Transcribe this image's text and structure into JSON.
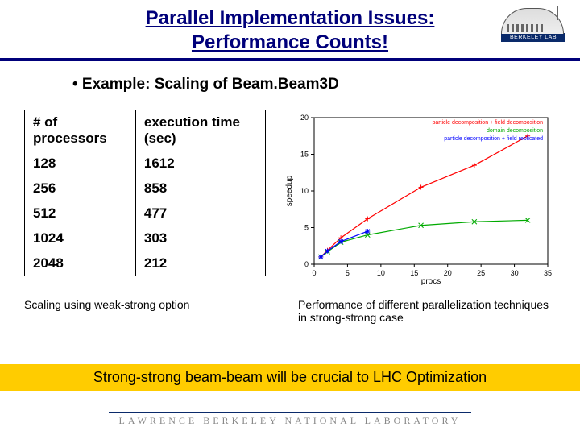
{
  "header": {
    "title_line1": "Parallel Implementation Issues:",
    "title_line2": "Performance Counts!",
    "title_color": "#00007a",
    "logo_label": "BERKELEY LAB"
  },
  "example_bullet": "•   Example: Scaling of Beam.Beam3D",
  "table": {
    "columns": [
      "# of processors",
      "execution time (sec)"
    ],
    "rows": [
      [
        "128",
        "1612"
      ],
      [
        "256",
        "858"
      ],
      [
        "512",
        "477"
      ],
      [
        "1024",
        "303"
      ],
      [
        "2048",
        "212"
      ]
    ]
  },
  "caption_left": "Scaling using weak-strong option",
  "caption_right": "Performance of different parallelization techniques in strong-strong case",
  "yellow_message": "Strong-strong beam-beam will be crucial to LHC Optimization",
  "chart": {
    "type": "line",
    "xlim": [
      0,
      35
    ],
    "ylim": [
      0,
      20
    ],
    "xtick_step": 5,
    "ytick_step": 5,
    "xlabel": "procs",
    "ylabel": "speedup",
    "background": "#ffffff",
    "axis_color": "#000000",
    "legend_items": [
      {
        "label": "particle decomposition + field decomposition",
        "color": "#ff0000"
      },
      {
        "label": "domain decomposition",
        "color": "#00aa00"
      },
      {
        "label": "particle decomposition + field replicated",
        "color": "#0000ff"
      }
    ],
    "series": [
      {
        "color": "#ff0000",
        "marker": "plus",
        "points": [
          [
            1,
            1
          ],
          [
            2,
            1.9
          ],
          [
            4,
            3.6
          ],
          [
            8,
            6.2
          ],
          [
            16,
            10.5
          ],
          [
            24,
            13.5
          ],
          [
            32,
            17.5
          ]
        ]
      },
      {
        "color": "#00aa00",
        "marker": "x",
        "points": [
          [
            1,
            1
          ],
          [
            2,
            1.7
          ],
          [
            4,
            3.0
          ],
          [
            8,
            4.0
          ],
          [
            16,
            5.3
          ],
          [
            24,
            5.8
          ],
          [
            32,
            6.0
          ]
        ]
      },
      {
        "color": "#0000ff",
        "marker": "star",
        "points": [
          [
            1,
            1
          ],
          [
            2,
            1.8
          ],
          [
            4,
            3.1
          ],
          [
            8,
            4.5
          ]
        ]
      }
    ]
  },
  "footer": "LAWRENCE BERKELEY NATIONAL LABORATORY"
}
